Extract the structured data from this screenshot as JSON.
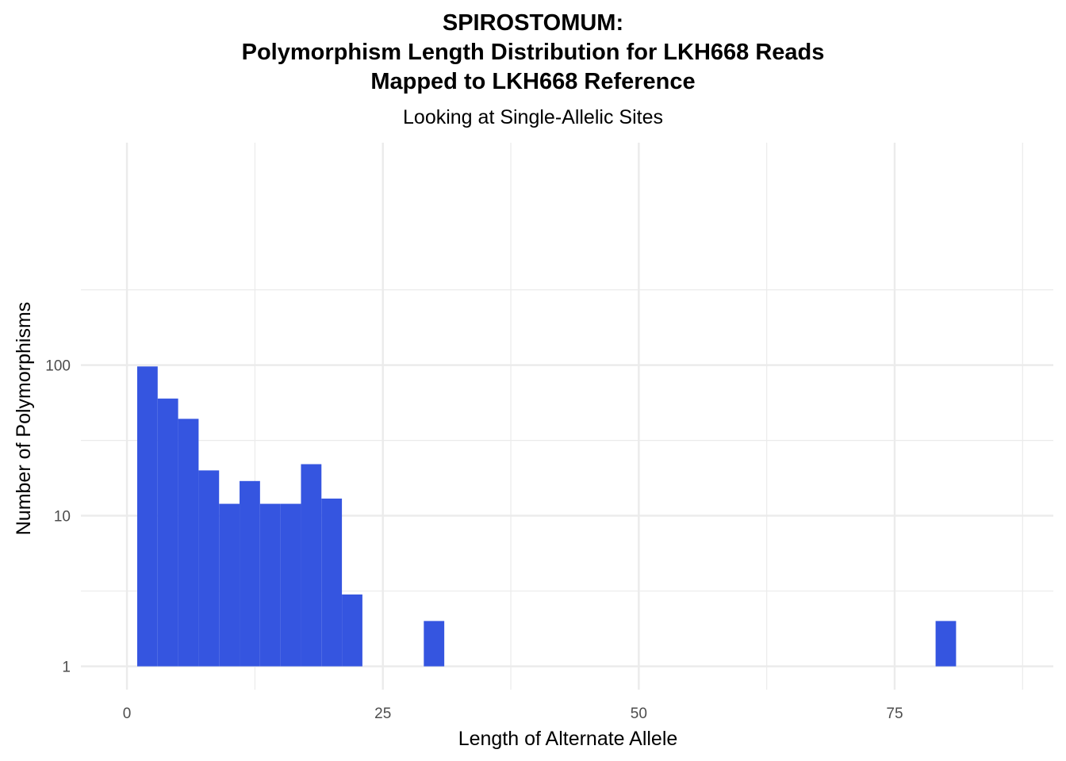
{
  "chart_data": {
    "type": "bar",
    "title_lines": [
      "SPIROSTOMUM:",
      "Polymorphism Length Distribution for LKH668 Reads",
      "Mapped to LKH668 Reference"
    ],
    "subtitle": "Looking at Single-Allelic Sites",
    "xlabel": "Length of Alternate Allele",
    "ylabel": "Number of Polymorphisms",
    "xlim": [
      -4.5,
      90.5
    ],
    "ylim": [
      0.7,
      3000
    ],
    "y_scale": "log10",
    "grid": true,
    "x_ticks": [
      {
        "value": 0,
        "label": "0"
      },
      {
        "value": 25,
        "label": "25"
      },
      {
        "value": 50,
        "label": "50"
      },
      {
        "value": 75,
        "label": "75"
      }
    ],
    "y_ticks": [
      {
        "value": 1,
        "label": "1"
      },
      {
        "value": 10,
        "label": "10"
      },
      {
        "value": 100,
        "label": "100"
      }
    ],
    "bin_width": 2,
    "bars": [
      {
        "x0": 1,
        "x1": 3,
        "value": 98
      },
      {
        "x0": 3,
        "x1": 5,
        "value": 60
      },
      {
        "x0": 5,
        "x1": 7,
        "value": 44
      },
      {
        "x0": 7,
        "x1": 9,
        "value": 20
      },
      {
        "x0": 9,
        "x1": 11,
        "value": 12
      },
      {
        "x0": 11,
        "x1": 13,
        "value": 17
      },
      {
        "x0": 13,
        "x1": 15,
        "value": 12
      },
      {
        "x0": 15,
        "x1": 17,
        "value": 12
      },
      {
        "x0": 17,
        "x1": 19,
        "value": 22
      },
      {
        "x0": 19,
        "x1": 21,
        "value": 13
      },
      {
        "x0": 21,
        "x1": 23,
        "value": 3
      },
      {
        "x0": 29,
        "x1": 31,
        "value": 2
      },
      {
        "x0": 79,
        "x1": 81,
        "value": 2
      }
    ],
    "colors": {
      "bar": "#3555e0",
      "grid_major": "#ebebeb",
      "grid_minor": "#f2f2f2"
    }
  }
}
